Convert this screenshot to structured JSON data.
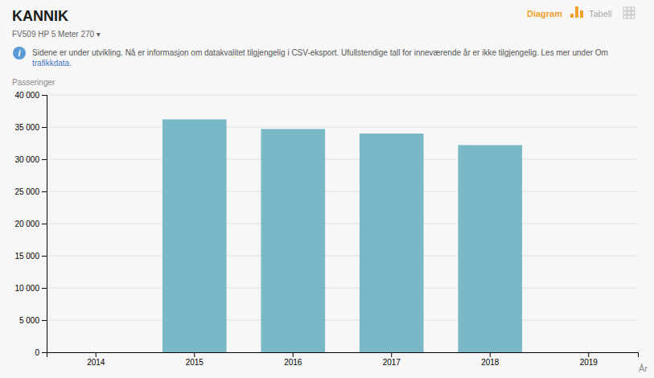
{
  "chart_data": {
    "type": "bar",
    "title": "KANNIK",
    "subtitle": "FV509 HP 5 Meter 270 ▾",
    "y_label": "Passeringer",
    "x_label": "År",
    "annotations": [
      "Diagram",
      "Tabell",
      "i",
      "Sidene er under utvikling. Nå er informasjon om datakvalitet tilgjengelig i CSV-eksport. Ufullstendige tall for inneværende år er ikke tilgjengelig. Les mer under Om",
      "trafikkdata."
    ],
    "categories": [
      "2014",
      "2015",
      "2016",
      "2017",
      "2018",
      "2019"
    ],
    "values": [
      0,
      36200,
      34700,
      34000,
      32200,
      0
    ],
    "color": "#7ab8c8",
    "ylim": [
      0,
      40000
    ],
    "yticks": [
      0,
      {
        "value": 5000,
        "label": "5 000"
      },
      {
        "value": 10000,
        "label": "10 000"
      },
      {
        "value": 15000,
        "label": "15 000"
      },
      {
        "value": 20000,
        "label": "20 000"
      },
      {
        "value": 25000,
        "label": "25 000"
      },
      {
        "value": 30000,
        "label": "30 000"
      },
      {
        "value": 35000,
        "label": "35 000"
      },
      {
        "value": 40000,
        "label": "40 000"
      }
    ],
    "grid": true
  }
}
